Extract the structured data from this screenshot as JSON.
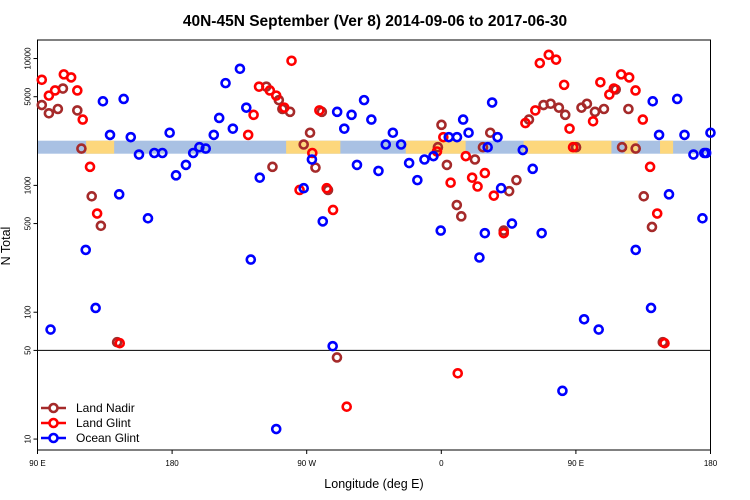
{
  "chart_data": {
    "type": "scatter",
    "title": "40N-45N September (Ver 8)   2014-09-06 to 2017-06-30",
    "xlabel": "Longitude (deg E)",
    "ylabel": "N Total",
    "x_scale": "linear",
    "y_scale": "log",
    "xlim": [
      90,
      450
    ],
    "ylim": [
      8.2,
      14000
    ],
    "x_tick_labels": [
      {
        "x": 90,
        "label": "90 E"
      },
      {
        "x": 162,
        "label": "180"
      },
      {
        "x": 234,
        "label": "90 W"
      },
      {
        "x": 306,
        "label": "0"
      },
      {
        "x": 378,
        "label": "90 E"
      },
      {
        "x": 450,
        "label": "180"
      }
    ],
    "y_ticks": [
      10,
      50,
      100,
      500,
      1000,
      5000,
      10000
    ],
    "y_tick_labels": [
      "10",
      "50",
      "100",
      "500",
      "1000",
      "5000",
      "10000"
    ],
    "reference_line_y": 50,
    "land_mask_band": {
      "y": 2000,
      "land_color": "#FDD77C",
      "ocean_color": "#A9C1E3",
      "land_ranges": [
        [
          116,
          131
        ],
        [
          223,
          252
        ],
        [
          287,
          319
        ],
        [
          350,
          397
        ],
        [
          404,
          411
        ],
        [
          423,
          430
        ]
      ]
    },
    "legend": {
      "position": "bottom-left"
    },
    "series": [
      {
        "name": "Land Nadir",
        "color": "#A52A2A",
        "points": [
          {
            "x": 92.3,
            "y": 4300
          },
          {
            "x": 96.1,
            "y": 3700
          },
          {
            "x": 100.9,
            "y": 4000
          },
          {
            "x": 103.6,
            "y": 5800
          },
          {
            "x": 111.3,
            "y": 3900
          },
          {
            "x": 113.5,
            "y": 1950
          },
          {
            "x": 119.0,
            "y": 820
          },
          {
            "x": 123.9,
            "y": 480
          },
          {
            "x": 132.6,
            "y": 58
          },
          {
            "x": 212.4,
            "y": 6000
          },
          {
            "x": 215.7,
            "y": 1400
          },
          {
            "x": 219.1,
            "y": 4700
          },
          {
            "x": 221.0,
            "y": 4000
          },
          {
            "x": 225.1,
            "y": 3800
          },
          {
            "x": 232.4,
            "y": 2100
          },
          {
            "x": 235.8,
            "y": 2600
          },
          {
            "x": 238.7,
            "y": 1380
          },
          {
            "x": 242.1,
            "y": 3800
          },
          {
            "x": 245.4,
            "y": 920
          },
          {
            "x": 250.2,
            "y": 44
          },
          {
            "x": 304.2,
            "y": 2000
          },
          {
            "x": 306.1,
            "y": 3000
          },
          {
            "x": 309.0,
            "y": 1450
          },
          {
            "x": 314.3,
            "y": 700
          },
          {
            "x": 316.7,
            "y": 570
          },
          {
            "x": 324.0,
            "y": 1600
          },
          {
            "x": 328.3,
            "y": 2000
          },
          {
            "x": 332.2,
            "y": 2600
          },
          {
            "x": 339.4,
            "y": 440
          },
          {
            "x": 342.3,
            "y": 900
          },
          {
            "x": 346.2,
            "y": 1100
          },
          {
            "x": 352.9,
            "y": 3300
          },
          {
            "x": 360.7,
            "y": 4300
          },
          {
            "x": 364.5,
            "y": 4400
          },
          {
            "x": 368.9,
            "y": 4100
          },
          {
            "x": 372.3,
            "y": 3600
          },
          {
            "x": 378.1,
            "y": 2000
          },
          {
            "x": 381.0,
            "y": 4100
          },
          {
            "x": 383.9,
            "y": 4400
          },
          {
            "x": 388.2,
            "y": 3800
          },
          {
            "x": 393.0,
            "y": 4000
          },
          {
            "x": 399.3,
            "y": 5700
          },
          {
            "x": 402.7,
            "y": 2000
          },
          {
            "x": 406.1,
            "y": 4000
          },
          {
            "x": 410.0,
            "y": 1950
          },
          {
            "x": 414.3,
            "y": 820
          },
          {
            "x": 418.7,
            "y": 470
          },
          {
            "x": 424.5,
            "y": 58
          }
        ]
      },
      {
        "name": "Land Glint",
        "color": "#FF0000",
        "points": [
          {
            "x": 92.3,
            "y": 6800
          },
          {
            "x": 96.1,
            "y": 5100
          },
          {
            "x": 99.4,
            "y": 5600
          },
          {
            "x": 104.1,
            "y": 7500
          },
          {
            "x": 108.0,
            "y": 7100
          },
          {
            "x": 111.3,
            "y": 5600
          },
          {
            "x": 114.2,
            "y": 3300
          },
          {
            "x": 118.1,
            "y": 1400
          },
          {
            "x": 121.9,
            "y": 600
          },
          {
            "x": 134.0,
            "y": 57
          },
          {
            "x": 202.7,
            "y": 2500
          },
          {
            "x": 205.6,
            "y": 3600
          },
          {
            "x": 208.5,
            "y": 6000
          },
          {
            "x": 214.3,
            "y": 5600
          },
          {
            "x": 217.7,
            "y": 5100
          },
          {
            "x": 222.0,
            "y": 4100
          },
          {
            "x": 225.9,
            "y": 9600
          },
          {
            "x": 230.2,
            "y": 920
          },
          {
            "x": 237.0,
            "y": 1800
          },
          {
            "x": 240.8,
            "y": 3900
          },
          {
            "x": 244.7,
            "y": 950
          },
          {
            "x": 248.1,
            "y": 640
          },
          {
            "x": 255.4,
            "y": 18
          },
          {
            "x": 303.7,
            "y": 1850
          },
          {
            "x": 307.1,
            "y": 2400
          },
          {
            "x": 311.0,
            "y": 1050
          },
          {
            "x": 314.8,
            "y": 33
          },
          {
            "x": 319.1,
            "y": 1700
          },
          {
            "x": 322.5,
            "y": 1150
          },
          {
            "x": 325.4,
            "y": 980
          },
          {
            "x": 329.3,
            "y": 1250
          },
          {
            "x": 334.1,
            "y": 830
          },
          {
            "x": 339.4,
            "y": 420
          },
          {
            "x": 351.0,
            "y": 3100
          },
          {
            "x": 356.3,
            "y": 3900
          },
          {
            "x": 358.7,
            "y": 9200
          },
          {
            "x": 363.5,
            "y": 10700
          },
          {
            "x": 367.4,
            "y": 9800
          },
          {
            "x": 371.7,
            "y": 6200
          },
          {
            "x": 374.6,
            "y": 2800
          },
          {
            "x": 376.5,
            "y": 2000
          },
          {
            "x": 387.2,
            "y": 3200
          },
          {
            "x": 391.1,
            "y": 6500
          },
          {
            "x": 395.9,
            "y": 5200
          },
          {
            "x": 398.3,
            "y": 5800
          },
          {
            "x": 402.2,
            "y": 7500
          },
          {
            "x": 406.5,
            "y": 7100
          },
          {
            "x": 409.9,
            "y": 5600
          },
          {
            "x": 413.8,
            "y": 3300
          },
          {
            "x": 417.7,
            "y": 1400
          },
          {
            "x": 421.5,
            "y": 600
          },
          {
            "x": 425.4,
            "y": 57
          }
        ]
      },
      {
        "name": "Ocean Glint",
        "color": "#0000FF",
        "points": [
          {
            "x": 97.0,
            "y": 73
          },
          {
            "x": 115.8,
            "y": 310
          },
          {
            "x": 121.1,
            "y": 108
          },
          {
            "x": 125.0,
            "y": 4600
          },
          {
            "x": 128.8,
            "y": 2500
          },
          {
            "x": 133.7,
            "y": 850
          },
          {
            "x": 136.1,
            "y": 4800
          },
          {
            "x": 139.9,
            "y": 2400
          },
          {
            "x": 144.3,
            "y": 1750
          },
          {
            "x": 149.1,
            "y": 550
          },
          {
            "x": 152.5,
            "y": 1800
          },
          {
            "x": 156.8,
            "y": 1800
          },
          {
            "x": 160.7,
            "y": 2600
          },
          {
            "x": 164.1,
            "y": 1200
          },
          {
            "x": 169.4,
            "y": 1450
          },
          {
            "x": 173.3,
            "y": 1800
          },
          {
            "x": 176.6,
            "y": 2000
          },
          {
            "x": 180.0,
            "y": 1950
          },
          {
            "x": 184.3,
            "y": 2500
          },
          {
            "x": 187.2,
            "y": 3400
          },
          {
            "x": 190.6,
            "y": 6400
          },
          {
            "x": 194.5,
            "y": 2800
          },
          {
            "x": 198.3,
            "y": 8300
          },
          {
            "x": 201.7,
            "y": 4100
          },
          {
            "x": 204.1,
            "y": 260
          },
          {
            "x": 208.9,
            "y": 1150
          },
          {
            "x": 217.7,
            "y": 12
          },
          {
            "x": 232.4,
            "y": 950
          },
          {
            "x": 236.8,
            "y": 1600
          },
          {
            "x": 242.6,
            "y": 520
          },
          {
            "x": 247.9,
            "y": 54
          },
          {
            "x": 250.3,
            "y": 3800
          },
          {
            "x": 254.1,
            "y": 2800
          },
          {
            "x": 258.0,
            "y": 3600
          },
          {
            "x": 260.9,
            "y": 1450
          },
          {
            "x": 264.7,
            "y": 4700
          },
          {
            "x": 268.6,
            "y": 3300
          },
          {
            "x": 272.4,
            "y": 1300
          },
          {
            "x": 276.3,
            "y": 2100
          },
          {
            "x": 280.1,
            "y": 2600
          },
          {
            "x": 284.5,
            "y": 2100
          },
          {
            "x": 288.8,
            "y": 1500
          },
          {
            "x": 293.2,
            "y": 1100
          },
          {
            "x": 297.0,
            "y": 1600
          },
          {
            "x": 301.8,
            "y": 1700
          },
          {
            "x": 305.7,
            "y": 440
          },
          {
            "x": 310.0,
            "y": 2400
          },
          {
            "x": 314.4,
            "y": 2400
          },
          {
            "x": 317.7,
            "y": 3300
          },
          {
            "x": 320.6,
            "y": 2600
          },
          {
            "x": 326.4,
            "y": 270
          },
          {
            "x": 329.3,
            "y": 420
          },
          {
            "x": 330.8,
            "y": 2000
          },
          {
            "x": 333.2,
            "y": 4500
          },
          {
            "x": 336.1,
            "y": 2400
          },
          {
            "x": 338.0,
            "y": 950
          },
          {
            "x": 343.8,
            "y": 500
          },
          {
            "x": 349.6,
            "y": 1900
          },
          {
            "x": 354.9,
            "y": 1350
          },
          {
            "x": 359.7,
            "y": 420
          },
          {
            "x": 370.8,
            "y": 24
          },
          {
            "x": 382.4,
            "y": 88
          },
          {
            "x": 390.2,
            "y": 73
          },
          {
            "x": 410.0,
            "y": 310
          },
          {
            "x": 419.1,
            "y": 4600
          },
          {
            "x": 418.2,
            "y": 108
          },
          {
            "x": 422.5,
            "y": 2500
          },
          {
            "x": 427.8,
            "y": 850
          },
          {
            "x": 432.2,
            "y": 4800
          },
          {
            "x": 436.1,
            "y": 2500
          },
          {
            "x": 440.9,
            "y": 1750
          },
          {
            "x": 445.7,
            "y": 550
          },
          {
            "x": 447.7,
            "y": 1800
          },
          {
            "x": 450.0,
            "y": 2600
          },
          {
            "x": 446.7,
            "y": 1800
          }
        ]
      }
    ]
  }
}
